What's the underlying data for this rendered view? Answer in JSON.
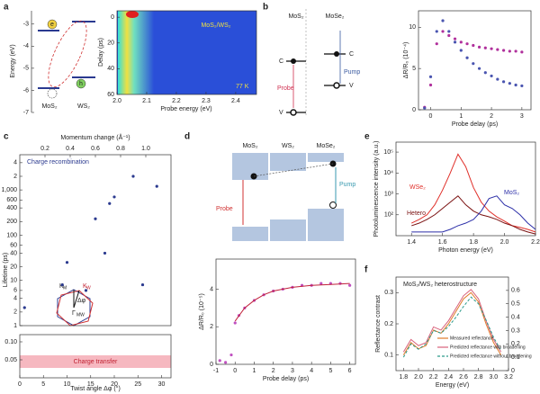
{
  "panel_a": {
    "label": "a",
    "energy": {
      "ylabel": "Energy (eV)",
      "ylim": [
        -7,
        -2.4
      ],
      "yticks": [
        -3,
        -4,
        -5,
        -6,
        -7
      ]
    },
    "texts": [
      "MoS₂",
      "WS₂",
      "e",
      "h"
    ],
    "heatmap": {
      "xlabel": "Probe energy (eV)",
      "ylabel": "Delay (ps)",
      "xlim": [
        2.0,
        2.47
      ],
      "xticks": [
        {
          "value": 2.0,
          "label": "2.0"
        },
        2.1,
        2.2,
        2.3,
        2.4
      ],
      "ylim": [
        60,
        -5
      ],
      "yticks": [
        0,
        20,
        40,
        60
      ],
      "title": "MoS₂/WS₂",
      "temperature": "77 K"
    }
  },
  "panel_b": {
    "label": "b",
    "texts": [
      "MoS₂",
      "MoSe₂",
      "C",
      "C",
      "V",
      "V",
      "Probe",
      "Pump"
    ],
    "plot": {
      "xlabel": "Probe delay (ps)",
      "ylabel": "ΔR/R₀ (10⁻⁴)",
      "xlim": [
        -0.4,
        3.3
      ],
      "ylim": [
        0,
        12
      ],
      "xticks": [
        0,
        1,
        2,
        3
      ],
      "yticks": [
        0,
        5,
        10
      ],
      "series": [
        {
          "kind": "scatter",
          "color": "#b0309c",
          "x": [
            -0.2,
            0,
            0.2,
            0.4,
            0.6,
            0.8,
            1.0,
            1.2,
            1.4,
            1.6,
            1.8,
            2.0,
            2.2,
            2.4,
            2.6,
            2.8,
            3.0
          ],
          "values": [
            0.3,
            3,
            8,
            9.5,
            9,
            8.6,
            8.2,
            8,
            7.8,
            7.6,
            7.5,
            7.4,
            7.3,
            7.2,
            7.1,
            7.1,
            7.0
          ]
        },
        {
          "kind": "scatter",
          "color": "#4a55b0",
          "x": [
            -0.2,
            0,
            0.2,
            0.4,
            0.6,
            0.8,
            1.0,
            1.2,
            1.4,
            1.6,
            1.8,
            2.0,
            2.2,
            2.4,
            2.6,
            2.8,
            3.0
          ],
          "values": [
            0.2,
            4,
            9.5,
            10.8,
            9.5,
            8.2,
            7.2,
            6.3,
            5.6,
            5,
            4.5,
            4.1,
            3.7,
            3.4,
            3.2,
            3.0,
            2.9
          ]
        }
      ]
    }
  },
  "panel_c": {
    "label": "c",
    "xlabel": "Twist angle Δφ (°)",
    "x2label": "Momentum change (Å⁻¹)",
    "ylabel": "Lifetime (ps)",
    "xlim": [
      0,
      32
    ],
    "xticks": [
      0,
      5,
      10,
      15,
      20,
      25,
      30
    ],
    "x2lim": [
      0,
      1.2
    ],
    "x2ticks": [
      0.2,
      0.4,
      0.6,
      0.8,
      {
        "value": 1.0,
        "label": "1.0"
      }
    ],
    "ylim": [
      1,
      6000
    ],
    "log": true,
    "yticks": [
      1,
      2,
      4,
      6,
      10,
      20,
      40,
      60,
      100,
      200,
      400,
      600,
      {
        "value": 1000,
        "label": "1,000"
      },
      {
        "value": 2000,
        "label": "2"
      },
      {
        "value": 4000,
        "label": "4"
      }
    ],
    "lower_ylim": [
      0,
      0.12
    ],
    "lower_yticks": [
      0.05,
      {
        "value": 0.1,
        "label": "0.10"
      }
    ],
    "recombination": "Charge recombination",
    "transfer": "Charge transfer",
    "inset": [
      "K",
      "M",
      "K",
      "W",
      "Δφ",
      "Γ",
      "MW"
    ],
    "series": [
      {
        "kind": "scatter",
        "color": "#2b3a8f",
        "x": [
          1,
          9,
          10,
          14,
          16,
          18,
          19,
          20,
          24,
          26,
          29
        ],
        "values": [
          2.5,
          8,
          25,
          6,
          230,
          40,
          500,
          700,
          2000,
          8,
          1200
        ]
      }
    ]
  },
  "panel_d": {
    "label": "d",
    "texts": [
      "MoS₂",
      "WS₂",
      "MoSe₂",
      "Probe",
      "Pump"
    ],
    "plot": {
      "xlabel": "Probe delay (ps)",
      "ylabel": "ΔR/R₀ (10⁻⁵)",
      "xlim": [
        -1,
        6.3
      ],
      "ylim": [
        0,
        5.6
      ],
      "xticks": [
        -1,
        0,
        1,
        2,
        3,
        4,
        5,
        6
      ],
      "yticks": [
        0,
        2,
        4
      ],
      "series": [
        {
          "kind": "scatter",
          "color": "#c050c0",
          "x": [
            -0.8,
            -0.5,
            -0.2,
            0,
            0.2,
            0.5,
            1,
            1.5,
            2,
            2.5,
            3,
            3.5,
            4,
            4.5,
            5,
            5.5,
            6
          ],
          "values": [
            0.2,
            0.1,
            0.5,
            2.2,
            2.6,
            3.0,
            3.4,
            3.7,
            3.9,
            4.0,
            4.1,
            4.2,
            4.2,
            4.3,
            4.3,
            4.3,
            4.2
          ]
        },
        {
          "kind": "line",
          "color": "#c0203a",
          "x": [
            0,
            0.5,
            1,
            1.5,
            2,
            3,
            4,
            5,
            6
          ],
          "values": [
            2.3,
            3.0,
            3.4,
            3.7,
            3.9,
            4.1,
            4.2,
            4.25,
            4.3
          ]
        }
      ]
    }
  },
  "panel_e": {
    "label": "e",
    "plot": {
      "xlabel": "Photon energy (eV)",
      "ylabel": "Photoluminescence intensity (a.u.)",
      "xlim": [
        1.3,
        2.2
      ],
      "ylim": [
        10,
        300000
      ],
      "log": true,
      "xticks": [
        1.4,
        1.6,
        1.8,
        {
          "value": 2.0,
          "label": "2.0"
        },
        2.2
      ],
      "yticks": [
        {
          "value": 100,
          "label": "10²"
        },
        {
          "value": 1000,
          "label": "10³"
        },
        {
          "value": 10000,
          "label": "10⁴"
        },
        {
          "value": 100000,
          "label": "10⁵"
        }
      ],
      "series": [
        {
          "name": "WSe₂",
          "kind": "line",
          "color": "#e0302a",
          "x": [
            1.4,
            1.45,
            1.5,
            1.55,
            1.6,
            1.65,
            1.7,
            1.75,
            1.8,
            1.85,
            1.9,
            1.95,
            2.0,
            2.05,
            2.1,
            2.15,
            2.2
          ],
          "values": [
            40,
            60,
            100,
            300,
            1500,
            10000,
            80000,
            20000,
            2000,
            400,
            150,
            80,
            50,
            30,
            25,
            20,
            15
          ]
        },
        {
          "name": "Hetero",
          "kind": "line",
          "color": "#7a1010",
          "x": [
            1.4,
            1.45,
            1.5,
            1.55,
            1.6,
            1.65,
            1.7,
            1.75,
            1.8,
            1.85,
            1.9,
            1.95,
            2.0,
            2.05,
            2.1,
            2.15,
            2.2
          ],
          "values": [
            30,
            40,
            60,
            100,
            200,
            400,
            800,
            300,
            150,
            100,
            80,
            60,
            40,
            30,
            20,
            15,
            12
          ]
        },
        {
          "name": "MoS₂",
          "kind": "line",
          "color": "#2c2fa8",
          "x": [
            1.4,
            1.45,
            1.5,
            1.55,
            1.6,
            1.65,
            1.7,
            1.75,
            1.8,
            1.85,
            1.9,
            1.95,
            2.0,
            2.05,
            2.1,
            2.15,
            2.2
          ],
          "values": [
            15,
            15,
            15,
            15,
            15,
            20,
            30,
            40,
            60,
            150,
            600,
            800,
            300,
            200,
            100,
            40,
            20
          ]
        }
      ]
    }
  },
  "panel_f": {
    "label": "f",
    "title": "MoS₂/WS₂ heterostructure",
    "plot": {
      "xlabel": "Energy (eV)",
      "ylabel": "Reflectance contrast",
      "xlim": [
        1.7,
        3.2
      ],
      "ylim": [
        0.05,
        0.35
      ],
      "y2lim": [
        0,
        0.7
      ],
      "xticks": [
        1.8,
        {
          "value": 2.0,
          "label": "2.0"
        },
        2.2,
        2.4,
        2.6,
        2.8,
        {
          "value": 3.0,
          "label": "3.0"
        },
        3.2
      ],
      "yticks": [
        0.1,
        0.2,
        0.3
      ],
      "y2ticks": [
        0,
        0.1,
        0.2,
        0.3,
        0.4,
        0.5,
        0.6
      ],
      "series": [
        {
          "name": "Measured reflectance",
          "kind": "line",
          "color": "#e07b2a",
          "x": [
            1.8,
            1.9,
            2.0,
            2.1,
            2.2,
            2.3,
            2.4,
            2.5,
            2.6,
            2.7,
            2.8,
            2.9,
            3.0,
            3.1
          ],
          "values": [
            0.1,
            0.14,
            0.12,
            0.13,
            0.18,
            0.17,
            0.2,
            0.24,
            0.28,
            0.3,
            0.27,
            0.2,
            0.14,
            0.1
          ]
        },
        {
          "name": "Predicted reflectance with broadening",
          "kind": "line",
          "color": "#d8607a",
          "x": [
            1.8,
            1.9,
            2.0,
            2.1,
            2.2,
            2.3,
            2.4,
            2.5,
            2.6,
            2.7,
            2.8,
            2.9,
            3.0,
            3.1
          ],
          "values": [
            0.11,
            0.15,
            0.13,
            0.14,
            0.19,
            0.18,
            0.21,
            0.25,
            0.29,
            0.31,
            0.28,
            0.21,
            0.15,
            0.11
          ]
        },
        {
          "name": "Predicted reflectance without broadening",
          "kind": "line",
          "dashed": true,
          "axis": "y2",
          "color": "#2a9a8a",
          "x": [
            1.8,
            1.9,
            2.0,
            2.1,
            2.2,
            2.3,
            2.4,
            2.5,
            2.6,
            2.7,
            2.8,
            2.9,
            3.0,
            3.1
          ],
          "values": [
            0.1,
            0.2,
            0.16,
            0.2,
            0.3,
            0.28,
            0.33,
            0.4,
            0.48,
            0.55,
            0.5,
            0.38,
            0.25,
            0.15
          ]
        }
      ]
    }
  }
}
